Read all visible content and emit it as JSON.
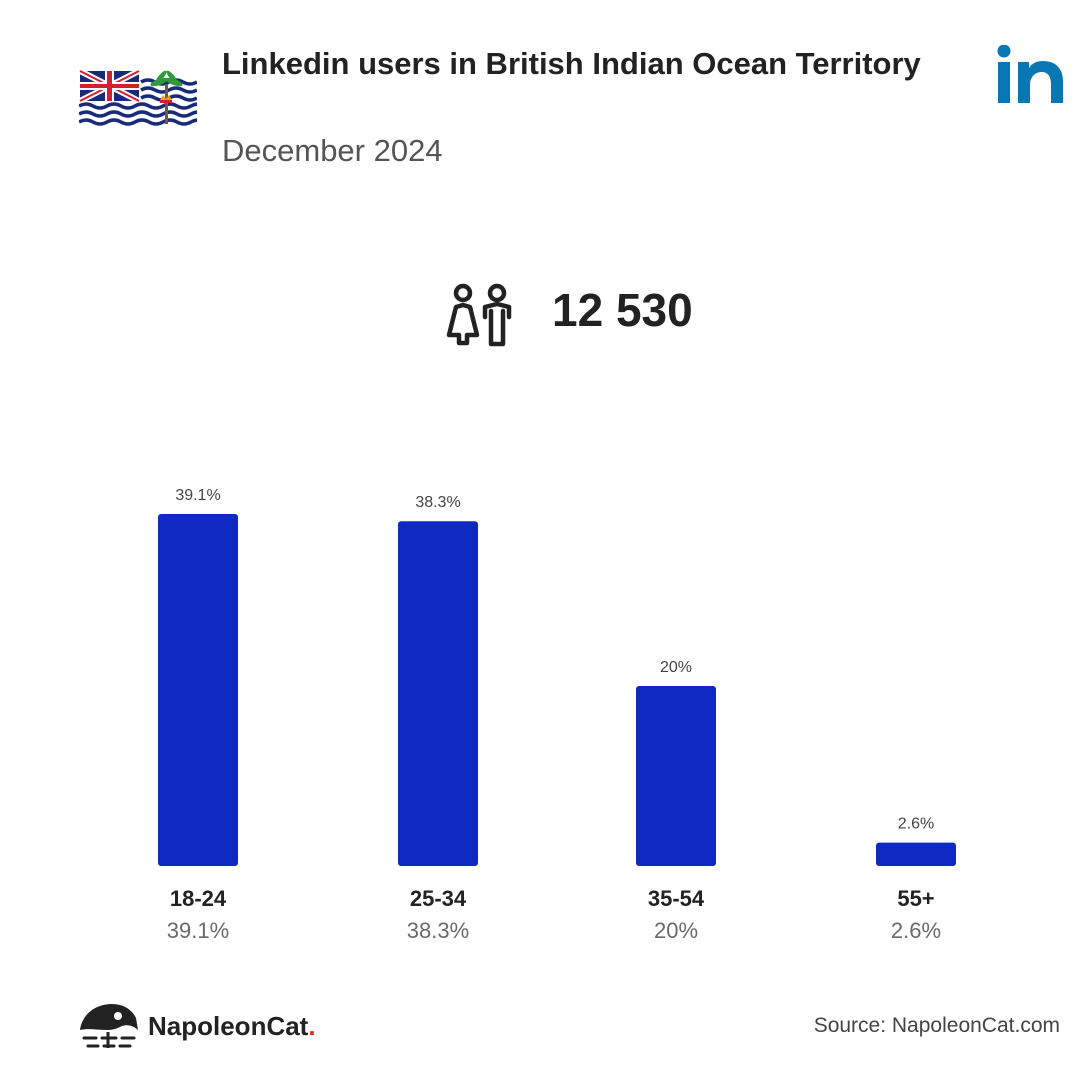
{
  "header": {
    "title": "Linkedin users in British Indian Ocean Territory",
    "subtitle": "December 2024"
  },
  "total_users": "12 530",
  "colors": {
    "bar": "#0f2ac3",
    "linkedin": "#0a77b5",
    "text_dark": "#222222",
    "text_muted": "#555555"
  },
  "icons": {
    "flag": "british-indian-ocean-territory-flag-icon",
    "platform": "linkedin-icon",
    "users": "users-icon",
    "brand": "napoleoncat-icon"
  },
  "footer": {
    "brand_name": "NapoleonCat",
    "brand_dot": ".",
    "source": "Source: NapoleonCat.com"
  },
  "chart_data": {
    "type": "bar",
    "categories": [
      "18-24",
      "25-34",
      "35-54",
      "55+"
    ],
    "values": [
      39.1,
      38.3,
      20,
      2.6
    ],
    "value_labels": [
      "39.1%",
      "38.3%",
      "20%",
      "2.6%"
    ],
    "ylim": [
      0,
      39.1
    ],
    "grid": false,
    "title": "",
    "xlabel": "",
    "ylabel": ""
  }
}
